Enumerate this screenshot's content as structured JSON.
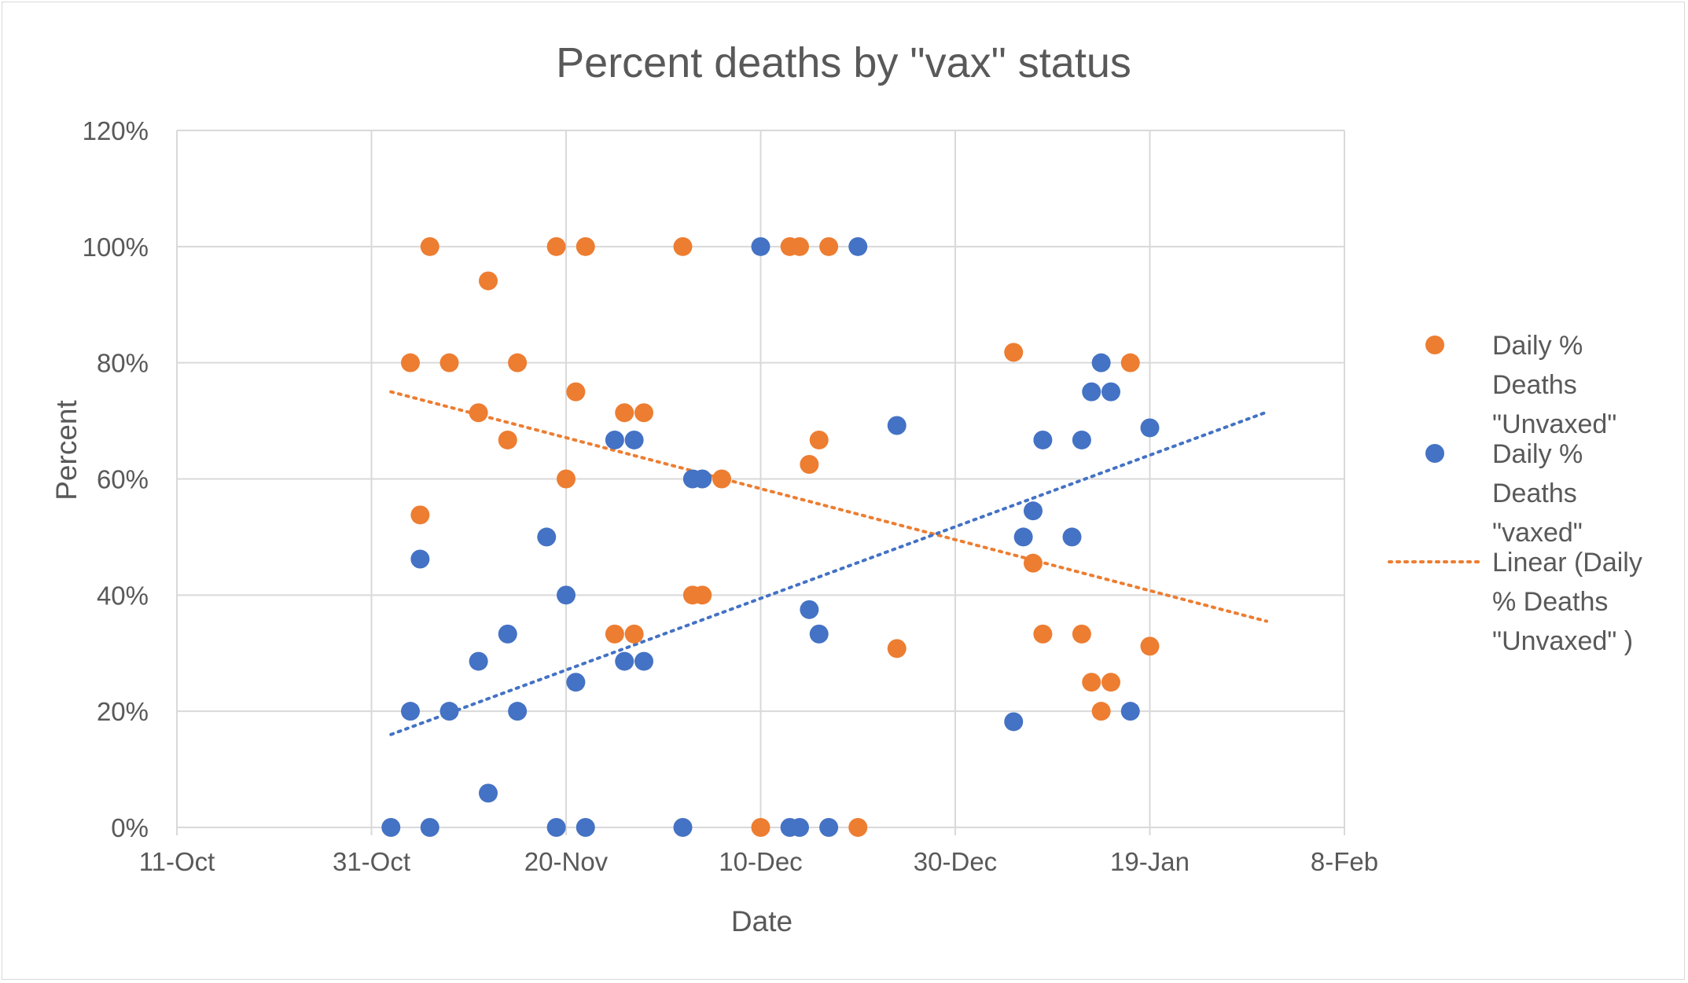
{
  "chart_data": {
    "type": "scatter",
    "title": "Percent deaths by \"vax\" status",
    "xlabel": "Date",
    "ylabel": "Percent",
    "x_is_date": true,
    "x_ticks": [
      "2021-10-11",
      "2021-10-31",
      "2021-11-20",
      "2021-12-10",
      "2021-12-30",
      "2022-01-19",
      "2022-02-08"
    ],
    "x_tick_labels": [
      "11-Oct",
      "31-Oct",
      "20-Nov",
      "10-Dec",
      "30-Dec",
      "19-Jan",
      "8-Feb"
    ],
    "xlim": [
      "2021-10-11",
      "2022-02-08"
    ],
    "y_ticks": [
      0,
      20,
      40,
      60,
      80,
      100,
      120
    ],
    "y_tick_labels": [
      "0%",
      "20%",
      "40%",
      "60%",
      "80%",
      "100%",
      "120%"
    ],
    "ylim": [
      0,
      120
    ],
    "grid": true,
    "legend_position": "right",
    "colors": {
      "unvaxed": "#ed7d31",
      "vaxed": "#4472c4",
      "gridline": "#d9d9d9",
      "text": "#595959"
    },
    "series": [
      {
        "name": "Daily % Deaths \"Unvaxed\"",
        "legend_lines": [
          "Daily %",
          "Deaths",
          "\"Unvaxed\""
        ],
        "color": "#ed7d31",
        "points": [
          {
            "x": "2021-11-04",
            "y": 80
          },
          {
            "x": "2021-11-05",
            "y": 53.8
          },
          {
            "x": "2021-11-06",
            "y": 100
          },
          {
            "x": "2021-11-08",
            "y": 80
          },
          {
            "x": "2021-11-11",
            "y": 71.4
          },
          {
            "x": "2021-11-12",
            "y": 94.1
          },
          {
            "x": "2021-11-14",
            "y": 66.7
          },
          {
            "x": "2021-11-15",
            "y": 80
          },
          {
            "x": "2021-11-19",
            "y": 100
          },
          {
            "x": "2021-11-20",
            "y": 60
          },
          {
            "x": "2021-11-21",
            "y": 75
          },
          {
            "x": "2021-11-22",
            "y": 100
          },
          {
            "x": "2021-11-25",
            "y": 33.3
          },
          {
            "x": "2021-11-26",
            "y": 71.4
          },
          {
            "x": "2021-11-27",
            "y": 33.3
          },
          {
            "x": "2021-11-28",
            "y": 71.4
          },
          {
            "x": "2021-12-02",
            "y": 100
          },
          {
            "x": "2021-12-03",
            "y": 40
          },
          {
            "x": "2021-12-04",
            "y": 40
          },
          {
            "x": "2021-12-06",
            "y": 60
          },
          {
            "x": "2021-12-10",
            "y": 0
          },
          {
            "x": "2021-12-13",
            "y": 100
          },
          {
            "x": "2021-12-14",
            "y": 100
          },
          {
            "x": "2021-12-15",
            "y": 62.5
          },
          {
            "x": "2021-12-16",
            "y": 66.7
          },
          {
            "x": "2021-12-17",
            "y": 100
          },
          {
            "x": "2021-12-20",
            "y": 0
          },
          {
            "x": "2021-12-24",
            "y": 30.8
          },
          {
            "x": "2022-01-05",
            "y": 81.8
          },
          {
            "x": "2022-01-07",
            "y": 45.5
          },
          {
            "x": "2022-01-08",
            "y": 33.3
          },
          {
            "x": "2022-01-12",
            "y": 33.3
          },
          {
            "x": "2022-01-13",
            "y": 25
          },
          {
            "x": "2022-01-14",
            "y": 20
          },
          {
            "x": "2022-01-15",
            "y": 25
          },
          {
            "x": "2022-01-17",
            "y": 80
          },
          {
            "x": "2022-01-19",
            "y": 31.2
          }
        ]
      },
      {
        "name": "Daily % Deaths \"vaxed\"",
        "legend_lines": [
          "Daily %",
          "Deaths",
          "\"vaxed\""
        ],
        "color": "#4472c4",
        "points": [
          {
            "x": "2021-11-02",
            "y": 0
          },
          {
            "x": "2021-11-04",
            "y": 20
          },
          {
            "x": "2021-11-05",
            "y": 46.2
          },
          {
            "x": "2021-11-06",
            "y": 0
          },
          {
            "x": "2021-11-08",
            "y": 20
          },
          {
            "x": "2021-11-11",
            "y": 28.6
          },
          {
            "x": "2021-11-12",
            "y": 5.9
          },
          {
            "x": "2021-11-14",
            "y": 33.3
          },
          {
            "x": "2021-11-15",
            "y": 20
          },
          {
            "x": "2021-11-18",
            "y": 50
          },
          {
            "x": "2021-11-19",
            "y": 0
          },
          {
            "x": "2021-11-20",
            "y": 40
          },
          {
            "x": "2021-11-21",
            "y": 25
          },
          {
            "x": "2021-11-22",
            "y": 0
          },
          {
            "x": "2021-11-25",
            "y": 66.7
          },
          {
            "x": "2021-11-26",
            "y": 28.6
          },
          {
            "x": "2021-11-27",
            "y": 66.7
          },
          {
            "x": "2021-11-28",
            "y": 28.6
          },
          {
            "x": "2021-12-02",
            "y": 0
          },
          {
            "x": "2021-12-03",
            "y": 60
          },
          {
            "x": "2021-12-04",
            "y": 60
          },
          {
            "x": "2021-12-10",
            "y": 100
          },
          {
            "x": "2021-12-13",
            "y": 0
          },
          {
            "x": "2021-12-14",
            "y": 0
          },
          {
            "x": "2021-12-15",
            "y": 37.5
          },
          {
            "x": "2021-12-16",
            "y": 33.3
          },
          {
            "x": "2021-12-17",
            "y": 0
          },
          {
            "x": "2021-12-20",
            "y": 100
          },
          {
            "x": "2021-12-24",
            "y": 69.2
          },
          {
            "x": "2022-01-05",
            "y": 18.2
          },
          {
            "x": "2022-01-06",
            "y": 50
          },
          {
            "x": "2022-01-07",
            "y": 54.5
          },
          {
            "x": "2022-01-08",
            "y": 66.7
          },
          {
            "x": "2022-01-11",
            "y": 50
          },
          {
            "x": "2022-01-12",
            "y": 66.7
          },
          {
            "x": "2022-01-13",
            "y": 75
          },
          {
            "x": "2022-01-14",
            "y": 80
          },
          {
            "x": "2022-01-15",
            "y": 75
          },
          {
            "x": "2022-01-17",
            "y": 20
          },
          {
            "x": "2022-01-19",
            "y": 68.8
          }
        ]
      }
    ],
    "trendlines": [
      {
        "name": "Linear (Daily % Deaths \"Unvaxed\" )",
        "legend_lines": [
          "Linear (Daily",
          "% Deaths",
          "\"Unvaxed\" )"
        ],
        "series": 0,
        "color": "#ed7d31",
        "style": "dotted",
        "start": {
          "x": "2021-11-02",
          "y": 75
        },
        "end": {
          "x": "2022-01-31",
          "y": 35.5
        }
      },
      {
        "series": 1,
        "color": "#4472c4",
        "style": "dotted",
        "start": {
          "x": "2021-11-02",
          "y": 16
        },
        "end": {
          "x": "2022-01-31",
          "y": 71.5
        }
      }
    ]
  }
}
